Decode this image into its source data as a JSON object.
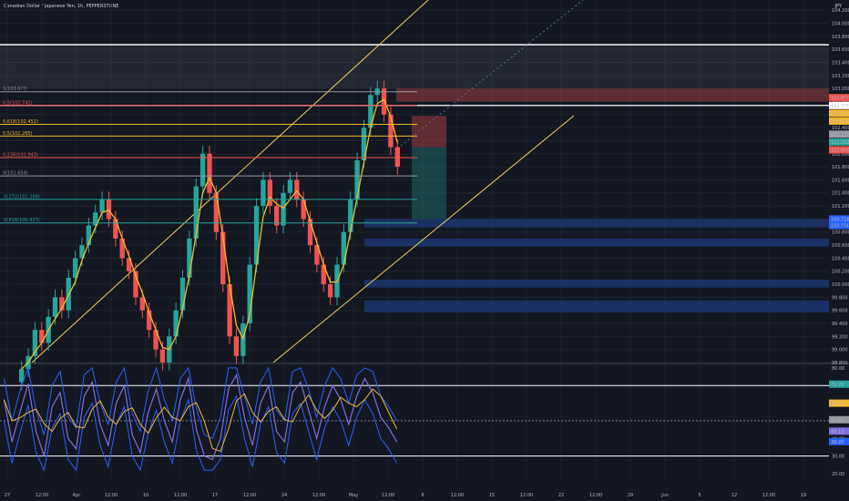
{
  "header": {
    "symbol_title": "Canadian Dollar / Japanese Yen, 1h, PEPPERSTONE",
    "currency": "JPY"
  },
  "colors": {
    "background": "#131722",
    "grid": "#1e222d",
    "up_candle": "#26a69a",
    "down_candle": "#ef5350",
    "fib_yellow": "#f5b92d",
    "fib_red": "#ef5350",
    "fib_teal": "#26a69a",
    "order_block": "#1f3a7a",
    "channel": "#f0d060",
    "rsi_line": "#7e6fe0",
    "rsi_signal": "#f5b92d",
    "bands": "#2962ff"
  },
  "chart_data": [
    {
      "type": "line",
      "name": "price",
      "y_axis_ticks": [
        "104.200",
        "104.000",
        "103.800",
        "103.600",
        "103.400",
        "103.200",
        "103.000",
        "102.800",
        "102.600",
        "102.400",
        "102.200",
        "102.000",
        "101.800",
        "101.600",
        "101.400",
        "101.200",
        "101.000",
        "100.800",
        "100.600",
        "100.400",
        "100.200",
        "100.000",
        "99.800",
        "99.600",
        "99.400",
        "99.200",
        "99.000",
        "98.800"
      ],
      "ylim": [
        98.8,
        104.3
      ],
      "x_ticks": [
        "27",
        "12:00",
        "Apr",
        "12:00",
        "10",
        "12:00",
        "17",
        "12:00",
        "24",
        "12:00",
        "May",
        "12:00",
        "8",
        "12:00",
        "15",
        "12:00",
        "22",
        "12:00",
        "29",
        "Jun",
        "5",
        "12",
        "12:00",
        "19"
      ],
      "price_badges": [
        "102.8??",
        "102.7??",
        "102.5??",
        "102.4??",
        "102.1??",
        "102.092",
        "101.600",
        "100.718",
        "100.??4"
      ],
      "fib_levels": [
        {
          "label": "1(103.0??)",
          "value": 102.95,
          "color": "#9598a1"
        },
        {
          "label": "0.5(102.741)",
          "value": 102.74,
          "color": "#ef5350"
        },
        {
          "label": "0.618(102.452)",
          "value": 102.45,
          "color": "#f5b92d"
        },
        {
          "label": "0.5(102.265)",
          "value": 102.27,
          "color": "#f5b92d"
        },
        {
          "label": "0.236(101.943)",
          "value": 101.94,
          "color": "#ef5350"
        },
        {
          "label": "0(101.659)",
          "value": 101.66,
          "color": "#9598a1"
        },
        {
          "label": "-0.272(101.298)",
          "value": 101.3,
          "color": "#26a69a"
        },
        {
          "label": "-0.618(100.937)",
          "value": 100.94,
          "color": "#26a69a"
        }
      ],
      "series": [
        {
          "values": [
            98.7,
            98.9,
            99.3,
            99.1,
            99.5,
            99.8,
            99.6,
            100.1,
            100.4,
            100.6,
            100.9,
            101.1,
            101.3,
            101.0,
            100.7,
            100.4,
            100.2,
            99.8,
            99.6,
            99.3,
            99.0,
            98.8,
            99.2,
            99.6,
            100.1,
            100.7,
            101.5,
            102.0,
            101.4,
            100.8,
            100.0,
            99.2,
            98.9,
            99.4,
            100.3,
            101.2,
            101.6,
            101.2,
            100.9,
            101.4,
            101.6,
            101.3,
            101.0,
            100.6,
            100.3,
            100.0,
            99.8,
            100.3,
            100.8,
            101.3,
            101.9,
            102.4,
            102.9,
            103.0,
            102.6,
            102.1,
            101.8
          ]
        }
      ]
    },
    {
      "type": "line",
      "name": "rsi",
      "y_axis_ticks": [
        "80.00",
        "70.00",
        "60.00",
        "50.00",
        "40.00",
        "30.00",
        "20.00"
      ],
      "ylim": [
        20,
        82
      ],
      "badges": [
        "70.76",
        "60.00",
        "50.60",
        "44.12",
        "38.20"
      ],
      "series": [
        {
          "values": [
            62,
            38,
            55,
            71,
            44,
            30,
            58,
            66,
            40,
            34,
            64,
            72,
            48,
            36,
            60,
            70,
            42,
            32,
            55,
            68,
            50,
            38,
            62,
            74,
            45,
            30,
            28,
            40,
            68,
            76,
            52,
            36,
            60,
            70,
            44,
            38,
            66,
            72,
            56,
            40,
            58,
            70,
            62,
            48,
            64,
            74,
            66,
            52,
            46,
            38
          ]
        }
      ]
    }
  ]
}
